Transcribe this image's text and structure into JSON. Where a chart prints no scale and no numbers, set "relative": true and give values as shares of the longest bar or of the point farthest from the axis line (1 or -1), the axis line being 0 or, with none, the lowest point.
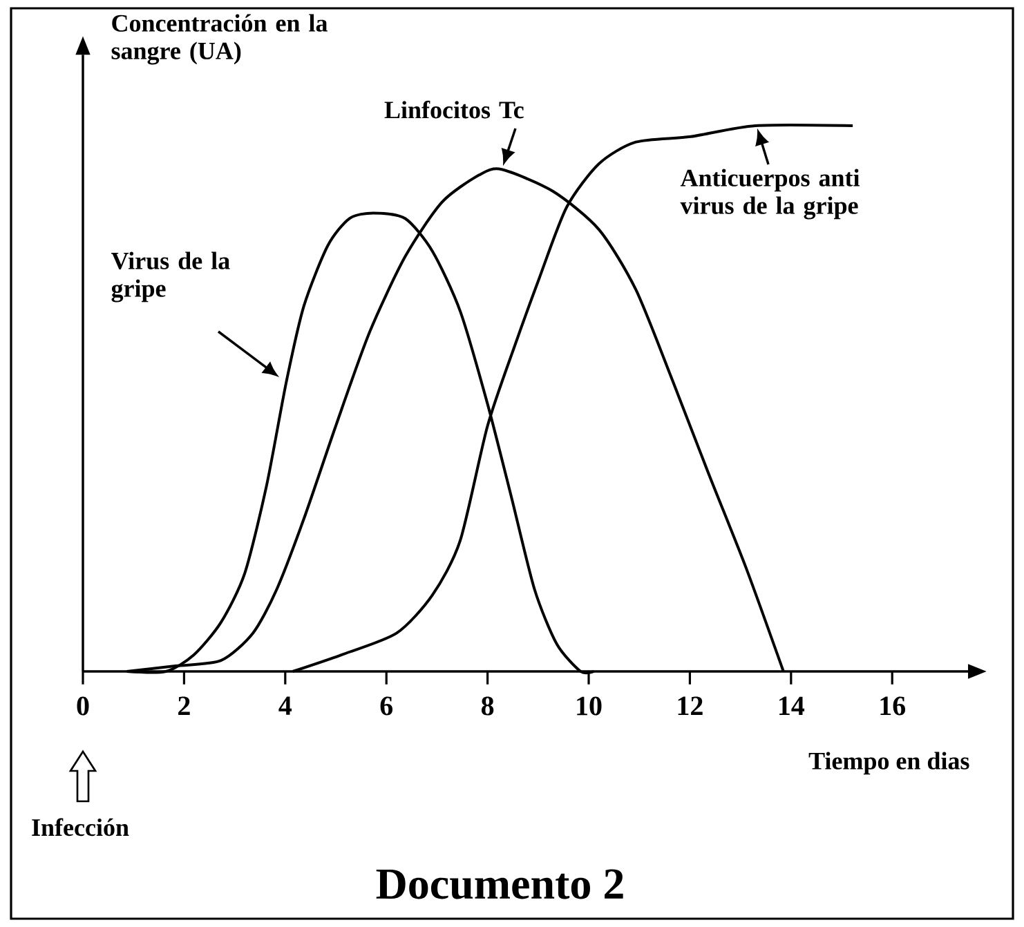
{
  "chart_data": {
    "type": "line",
    "title": "Documento 2",
    "xlabel": "Tiempo en dias",
    "ylabel": "Concentración en la sangre (UA)",
    "relative": true,
    "xlim": [
      0,
      17.5
    ],
    "xticks": [
      0,
      2,
      4,
      6,
      8,
      10,
      12,
      14,
      16
    ],
    "annotations": [
      "Infección"
    ],
    "series": [
      {
        "name": "Virus de la gripe",
        "color": "#000000",
        "x": [
          0.87,
          1.64,
          2.19,
          2.73,
          3.2,
          3.63,
          4.02,
          4.37,
          4.84,
          5.27,
          5.74,
          6.37,
          6.91,
          7.46,
          8.0,
          8.47,
          8.93,
          9.37,
          9.84,
          10.1
        ],
        "values": [
          0.0,
          0.0,
          0.03,
          0.09,
          0.18,
          0.34,
          0.53,
          0.67,
          0.78,
          0.83,
          0.84,
          0.83,
          0.77,
          0.66,
          0.49,
          0.32,
          0.15,
          0.05,
          0.0,
          0.0
        ]
      },
      {
        "name": "Linfocitos Tc",
        "color": "#000000",
        "x": [
          0.87,
          1.83,
          2.73,
          3.36,
          3.83,
          4.37,
          5.0,
          5.66,
          6.37,
          7.1,
          7.84,
          8.28,
          9.29,
          10.2,
          10.93,
          11.67,
          12.38,
          13.11,
          13.85
        ],
        "values": [
          0.0,
          0.01,
          0.02,
          0.07,
          0.15,
          0.28,
          0.45,
          0.62,
          0.76,
          0.86,
          0.91,
          0.92,
          0.88,
          0.81,
          0.7,
          0.53,
          0.36,
          0.19,
          0.0
        ]
      },
      {
        "name": "Anticuerpos anti virus de la gripe",
        "color": "#000000",
        "x": [
          4.15,
          5.1,
          6.2,
          6.91,
          7.46,
          8.0,
          8.55,
          9.02,
          9.56,
          10.2,
          10.93,
          12.02,
          13.3,
          15.22
        ],
        "values": [
          0.0,
          0.03,
          0.07,
          0.14,
          0.24,
          0.45,
          0.6,
          0.72,
          0.85,
          0.93,
          0.97,
          0.98,
          1.0,
          1.0
        ]
      }
    ]
  }
}
